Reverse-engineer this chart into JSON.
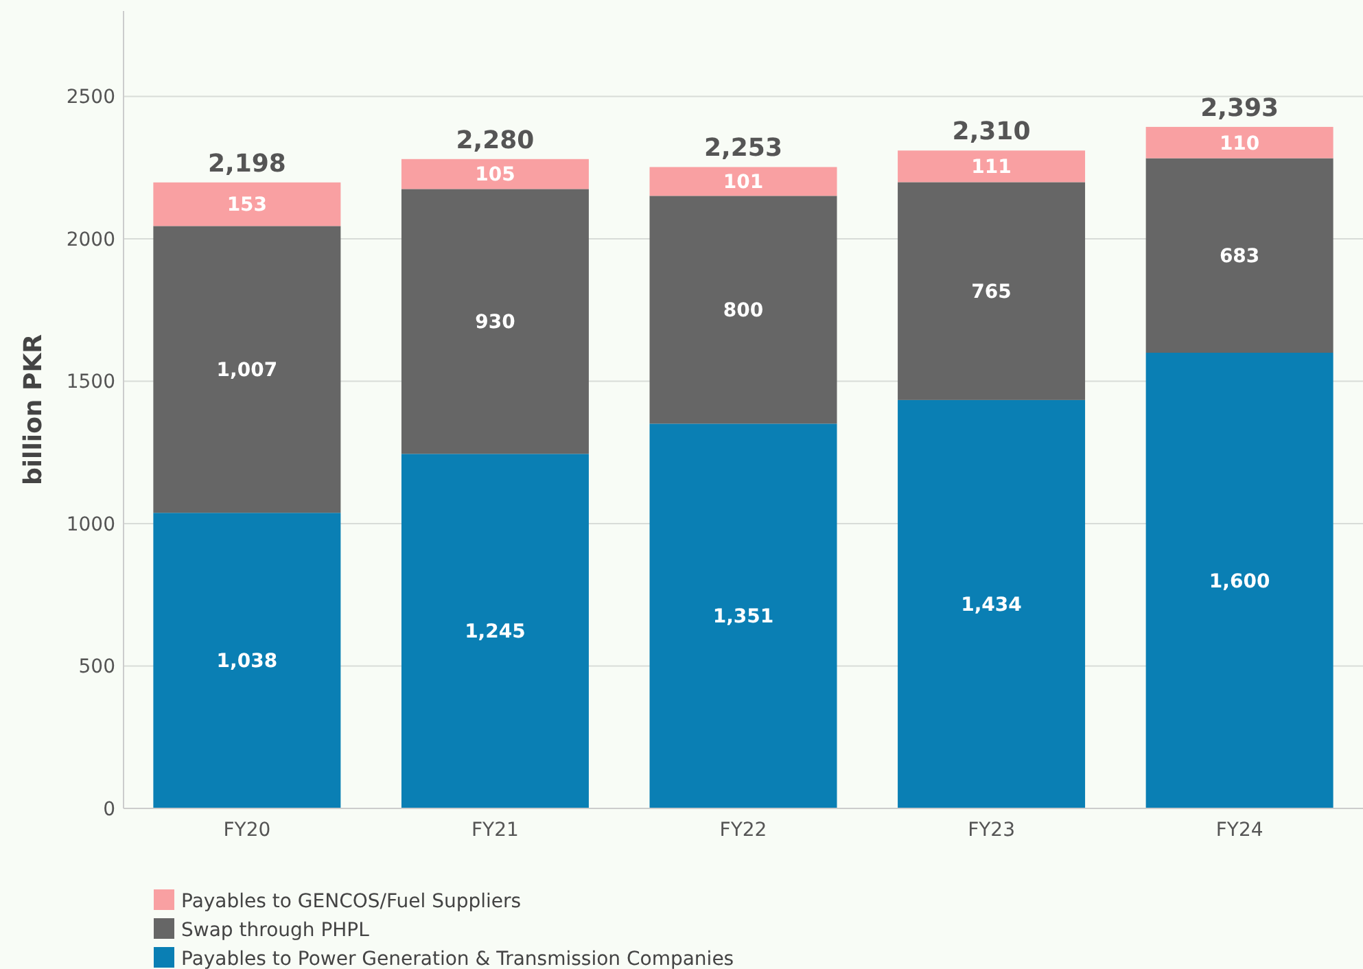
{
  "chart_data": {
    "type": "bar",
    "stacked": true,
    "ylabel": "billion PKR",
    "categories": [
      "FY20",
      "FY21",
      "FY22",
      "FY23",
      "FY24"
    ],
    "series": [
      {
        "name": "Payables to Power Generation & Transmission Companies",
        "color": "#0a7fb4",
        "values": [
          1038,
          1245,
          1351,
          1434,
          1600
        ],
        "value_labels": [
          "1,038",
          "1,245",
          "1,351",
          "1,434",
          "1,600"
        ]
      },
      {
        "name": "Swap through PHPL",
        "color": "#666666",
        "values": [
          1007,
          930,
          800,
          765,
          683
        ],
        "value_labels": [
          "1,007",
          "930",
          "800",
          "765",
          "683"
        ]
      },
      {
        "name": "Payables to GENCOS/Fuel Suppliers",
        "color": "#f9a0a2",
        "values": [
          153,
          105,
          101,
          111,
          110
        ],
        "value_labels": [
          "153",
          "105",
          "101",
          "111",
          "110"
        ]
      }
    ],
    "totals": [
      "2,198",
      "2,280",
      "2,253",
      "2,310",
      "2,393"
    ],
    "ylim": [
      0,
      2800
    ],
    "yticks": [
      0,
      500,
      1000,
      1500,
      2000,
      2500
    ],
    "grid": "y",
    "legend": "bottom left"
  }
}
